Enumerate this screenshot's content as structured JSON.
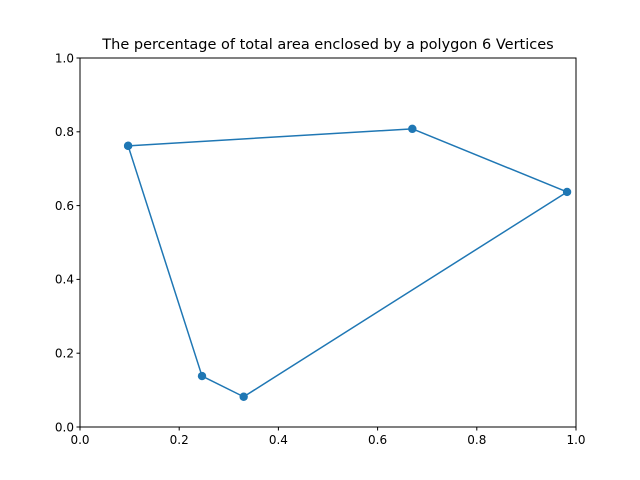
{
  "chart_data": {
    "type": "line",
    "title": "The percentage of total area enclosed by a polygon 6 Vertices",
    "xlabel": "",
    "ylabel": "",
    "xlim": [
      0.0,
      1.0
    ],
    "ylim": [
      0.0,
      1.0
    ],
    "xticks": [
      "0.0",
      "0.2",
      "0.4",
      "0.6",
      "0.8",
      "1.0"
    ],
    "yticks": [
      "0.0",
      "0.2",
      "0.4",
      "0.6",
      "0.8",
      "1.0"
    ],
    "grid": false,
    "series": [
      {
        "color": "#1f77b4",
        "marker": "circle",
        "closed": true,
        "x": [
          0.097,
          0.67,
          0.982,
          0.33,
          0.246,
          0.097
        ],
        "y": [
          0.762,
          0.808,
          0.637,
          0.082,
          0.138,
          0.762
        ]
      }
    ]
  }
}
